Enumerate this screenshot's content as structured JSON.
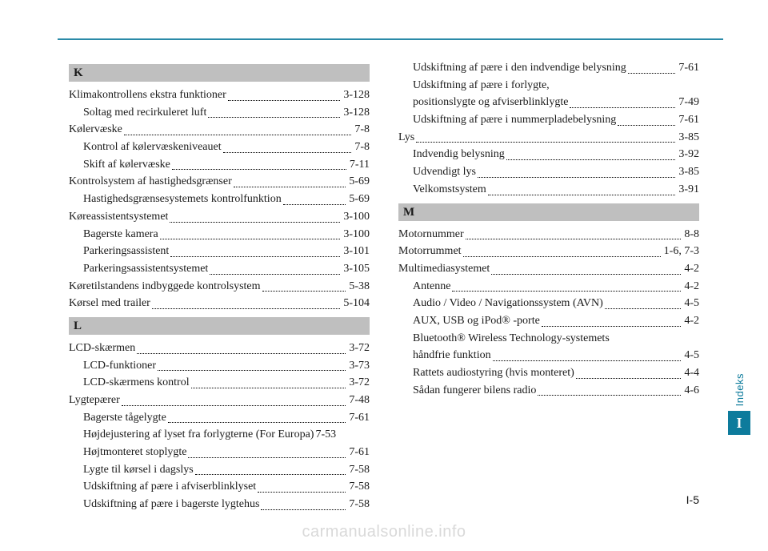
{
  "tab": {
    "label": "Indeks",
    "letter": "I"
  },
  "page_number": "I-5",
  "watermark": "carmanualsonline.info",
  "left": {
    "groups": [
      {
        "head": "K",
        "entries": [
          {
            "label": "Klimakontrollens ekstra funktioner",
            "page": "3-128",
            "sub": false
          },
          {
            "label": "Soltag med recirkuleret luft",
            "page": "3-128",
            "sub": true
          },
          {
            "label": "Kølervæske",
            "page": "7-8",
            "sub": false
          },
          {
            "label": "Kontrol af kølervæskeniveauet",
            "page": "7-8",
            "sub": true
          },
          {
            "label": "Skift af kølervæske",
            "page": "7-11",
            "sub": true
          },
          {
            "label": "Kontrolsystem af hastighedsgrænser",
            "page": "5-69",
            "sub": false
          },
          {
            "label": "Hastighedsgrænsesystemets kontrolfunktion",
            "page": "5-69",
            "sub": true
          },
          {
            "label": "Køreassistentsystemet",
            "page": "3-100",
            "sub": false
          },
          {
            "label": "Bagerste kamera",
            "page": "3-100",
            "sub": true
          },
          {
            "label": "Parkeringsassistent",
            "page": "3-101",
            "sub": true
          },
          {
            "label": "Parkeringsassistentsystemet",
            "page": "3-105",
            "sub": true
          },
          {
            "label": "Køretilstandens indbyggede kontrolsystem",
            "page": "5-38",
            "sub": false
          },
          {
            "label": "Kørsel med trailer",
            "page": "5-104",
            "sub": false
          }
        ]
      },
      {
        "head": "L",
        "entries": [
          {
            "label": "LCD-skærmen",
            "page": "3-72",
            "sub": false
          },
          {
            "label": "LCD-funktioner",
            "page": "3-73",
            "sub": true
          },
          {
            "label": "LCD-skærmens kontrol",
            "page": "3-72",
            "sub": true
          },
          {
            "label": "Lygtepærer",
            "page": "7-48",
            "sub": false
          },
          {
            "label": "Bagerste tågelygte",
            "page": "7-61",
            "sub": true
          },
          {
            "label": "Højdejustering af lyset fra forlygterne (For Europa)",
            "page": "7-53",
            "sub": true,
            "nodots": true
          },
          {
            "label": "Højtmonteret stoplygte",
            "page": "7-61",
            "sub": true
          },
          {
            "label": "Lygte til kørsel i dagslys",
            "page": "7-58",
            "sub": true
          },
          {
            "label": "Udskiftning af pære i afviserblinklyset",
            "page": "7-58",
            "sub": true
          },
          {
            "label": "Udskiftning af pære i bagerste lygtehus",
            "page": "7-58",
            "sub": true
          }
        ]
      }
    ]
  },
  "right": {
    "pre_entries": [
      {
        "label": "Udskiftning af pære i den indvendige belysning",
        "page": "7-61",
        "sub": true
      },
      {
        "label": "Udskiftning af pære i forlygte, positionslygte og afviserblinklygte",
        "page": "7-49",
        "sub": true,
        "wrap": true
      },
      {
        "label": "Udskiftning af pære i nummerpladebelysning",
        "page": "7-61",
        "sub": true
      },
      {
        "label": "Lys",
        "page": "3-85",
        "sub": false
      },
      {
        "label": "Indvendig belysning",
        "page": "3-92",
        "sub": true
      },
      {
        "label": "Udvendigt lys",
        "page": "3-85",
        "sub": true
      },
      {
        "label": "Velkomstsystem",
        "page": "3-91",
        "sub": true
      }
    ],
    "groups": [
      {
        "head": "M",
        "entries": [
          {
            "label": "Motornummer",
            "page": "8-8",
            "sub": false
          },
          {
            "label": "Motorrummet",
            "page": "1-6, 7-3",
            "sub": false
          },
          {
            "label": "Multimediasystemet",
            "page": "4-2",
            "sub": false
          },
          {
            "label": "Antenne",
            "page": "4-2",
            "sub": true
          },
          {
            "label": "Audio / Video / Navigationssystem (AVN)",
            "page": "4-5",
            "sub": true
          },
          {
            "label": "AUX, USB og iPod® -porte",
            "page": "4-2",
            "sub": true
          },
          {
            "label": "Bluetooth® Wireless Technology-systemets håndfrie funktion",
            "page": "4-5",
            "sub": true,
            "wrap": true
          },
          {
            "label": "Rattets audiostyring (hvis monteret)",
            "page": "4-4",
            "sub": true
          },
          {
            "label": "Sådan fungerer bilens radio",
            "page": "4-6",
            "sub": true
          }
        ]
      }
    ]
  }
}
